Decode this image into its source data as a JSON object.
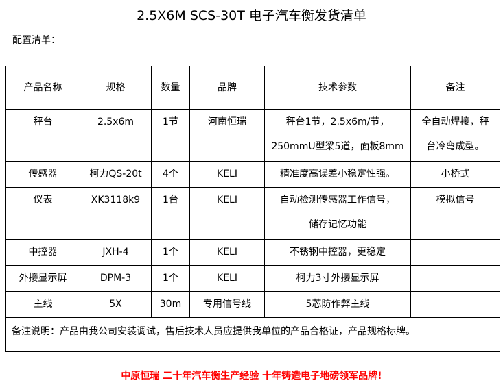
{
  "title": "2.5X6M SCS-30T 电子汽车衡发货清单",
  "subtitle": "配置清单：",
  "headers": [
    "产品名称",
    "规格",
    "数量",
    "品牌",
    "技术参数",
    "备注"
  ],
  "rows": [
    {
      "name": "秤台",
      "spec": "2.5x6m",
      "qty": "1节",
      "brand": "河南恒瑞",
      "tech": [
        "秤台1节，2.5x6m/节，",
        "250mmU型梁5道，面板8mm"
      ],
      "remark": [
        "全自动焊接，秤",
        "台冷弯成型。"
      ]
    },
    {
      "name": "传感器",
      "spec": "柯力QS-20t",
      "qty": "4个",
      "brand": "KELI",
      "tech": [
        "精准度高误差小稳定性强。"
      ],
      "remark": [
        "小桥式"
      ]
    },
    {
      "name": "仪表",
      "spec": "XK3118k9",
      "qty": "1台",
      "brand": "KELI",
      "tech": [
        "自动检测传感器工作信号，",
        "储存记忆功能"
      ],
      "remark": [
        "模拟信号"
      ]
    },
    {
      "name": "中控器",
      "spec": "JXH-4",
      "qty": "1个",
      "brand": "KELI",
      "tech": [
        "不锈钢中控器，更稳定"
      ],
      "remark": [
        ""
      ]
    },
    {
      "name": "外接显示屏",
      "spec": "DPM-3",
      "qty": "1个",
      "brand": "KELI",
      "tech": [
        "柯力3寸外接显示屏"
      ],
      "remark": [
        ""
      ]
    },
    {
      "name": "主线",
      "spec": "5X",
      "qty": "30m",
      "brand": "专用信号线",
      "tech": [
        "5芯防作弊主线"
      ],
      "remark": [
        ""
      ]
    }
  ],
  "note": "备注说明：产品由我公司安装调试，售后技术人员应提供我单位的产品合格证，产品规格标牌。",
  "slogan": "中原恒瑞 二十年汽车衡生产经验 十年铸造电子地磅领军品牌!"
}
